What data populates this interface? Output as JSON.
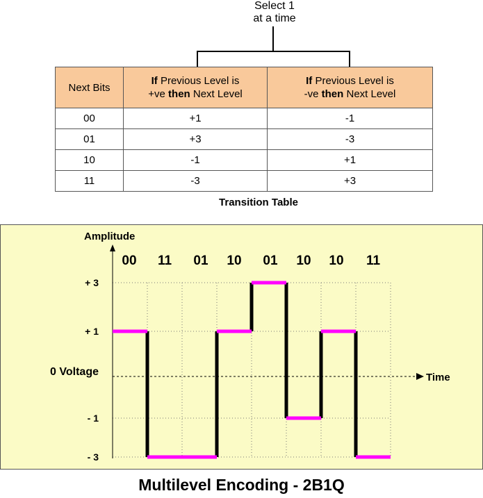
{
  "annotation": {
    "line1": "Select 1",
    "line2": "at a time"
  },
  "table": {
    "headers": {
      "col1": "Next Bits",
      "col2_if": "If",
      "col2_mid": " Previous Level is",
      "col2_line2_pre": "+ve ",
      "col2_then": "then",
      "col2_post": " Next Level",
      "col3_if": "If",
      "col3_mid": " Previous Level is",
      "col3_line2_pre": "-ve ",
      "col3_then": "then",
      "col3_post": " Next Level"
    },
    "rows": [
      {
        "bits": "00",
        "pos": "+1",
        "neg": "-1"
      },
      {
        "bits": "01",
        "pos": "+3",
        "neg": "-3"
      },
      {
        "bits": "10",
        "pos": "-1",
        "neg": "+1"
      },
      {
        "bits": "11",
        "pos": "-3",
        "neg": "+3"
      }
    ],
    "caption": "Transition Table"
  },
  "chart_data": {
    "type": "line",
    "ylabel": "Amplitude",
    "xlabel": "Time",
    "y_levels": [
      {
        "value": 3,
        "label": "+ 3"
      },
      {
        "value": 1,
        "label": "+ 1"
      },
      {
        "value": 0,
        "label": "0 Voltage"
      },
      {
        "value": -1,
        "label": "- 1"
      },
      {
        "value": -3,
        "label": "- 3"
      }
    ],
    "bit_pairs": [
      "00",
      "11",
      "01",
      "10",
      "01",
      "10",
      "10",
      "11"
    ],
    "levels": [
      1,
      -3,
      -3,
      1,
      3,
      -1,
      1,
      -3
    ],
    "grid": true,
    "signal_color": "#ff00ff",
    "transition_color": "#000000",
    "background": "#fbfbc6"
  },
  "caption": "Multilevel Encoding - 2B1Q"
}
